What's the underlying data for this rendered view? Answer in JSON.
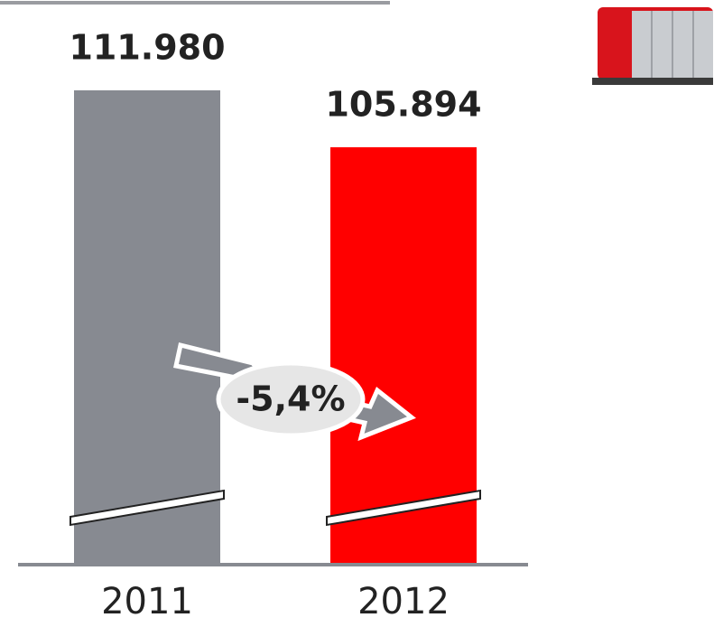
{
  "chart_data": {
    "type": "bar",
    "categories": [
      "2011",
      "2012"
    ],
    "values": [
      111980,
      105894
    ],
    "value_labels": [
      "111.980",
      "105.894"
    ],
    "colors": [
      "#878a91",
      "#ff0000"
    ],
    "annotation": "-5,4%",
    "axis_break": true
  }
}
